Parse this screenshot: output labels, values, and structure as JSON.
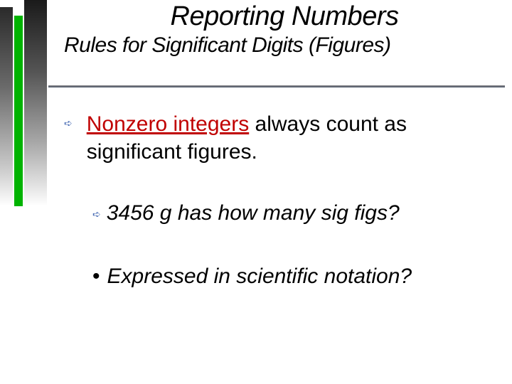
{
  "slide": {
    "title": "Reporting Numbers",
    "subtitle": "Rules for Significant Digits (Figures)",
    "rule": {
      "highlighted_term": "Nonzero integers",
      "remainder": " always count as significant figures.",
      "highlight_color": "#c00000"
    },
    "example": {
      "text": "3456 g has how many sig figs?"
    },
    "followup": {
      "text": "Expressed in scientific notation?"
    }
  },
  "style": {
    "bar_colors": {
      "gradient_dark_start": "#1a1a1a",
      "gradient_dark_end": "#ffffff",
      "green_bar": "#00b300"
    },
    "underline_color": "#4a5568",
    "arrow_color": "#4a6db5",
    "text_color": "#000000",
    "background": "#ffffff",
    "title_fontsize": 38,
    "subtitle_fontsize": 30,
    "body_fontsize": 30
  }
}
